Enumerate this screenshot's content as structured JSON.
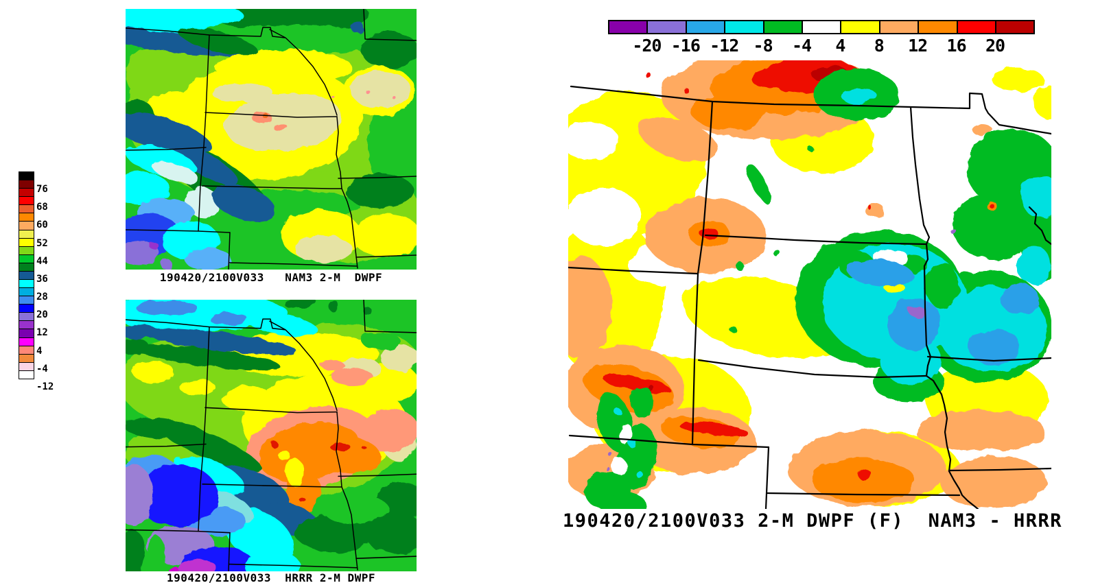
{
  "left_panel": {
    "colorbar": {
      "orientation": "vertical",
      "labels": [
        "76",
        "68",
        "60",
        "52",
        "44",
        "36",
        "28",
        "20",
        "12",
        "4",
        "-4",
        "-12"
      ],
      "cell_colors": [
        "#000000",
        "#7E0000",
        "#C40000",
        "#FF0000",
        "#ED5F2C",
        "#FF8800",
        "#FFAA60",
        "#F0F050",
        "#FFFF00",
        "#7FD818",
        "#00C82C",
        "#00801E",
        "#155A94",
        "#00FFFF",
        "#00AEE0",
        "#3E8CF0",
        "#0000FF",
        "#8A70D8",
        "#9932CC",
        "#7A00B0",
        "#FF00FF",
        "#FF8878",
        "#F28A3C",
        "#FBD5E5",
        "#FFFFFF"
      ]
    },
    "maps": [
      {
        "id": "nam3",
        "caption": "190420/2100V033   NAM3 2-M  DWPF"
      },
      {
        "id": "hrrr",
        "caption": "190420/2100V033  HRRR 2-M DWPF"
      }
    ]
  },
  "right_panel": {
    "colorbar": {
      "orientation": "horizontal",
      "labels": [
        "-20",
        "-16",
        "-12",
        "-8",
        "-4",
        "4",
        "8",
        "12",
        "16",
        "20"
      ],
      "cell_colors": [
        "#8800AA",
        "#8A70D8",
        "#28A8E8",
        "#00E8E8",
        "#00BB22",
        "#FFFFFF",
        "#FFFF00",
        "#FFAA60",
        "#FF8800",
        "#FF0000",
        "#BB0000"
      ]
    },
    "map": {
      "id": "diff",
      "caption": "190420/2100V033 2-M DWPF (F)  NAM3 - HRRR"
    }
  }
}
